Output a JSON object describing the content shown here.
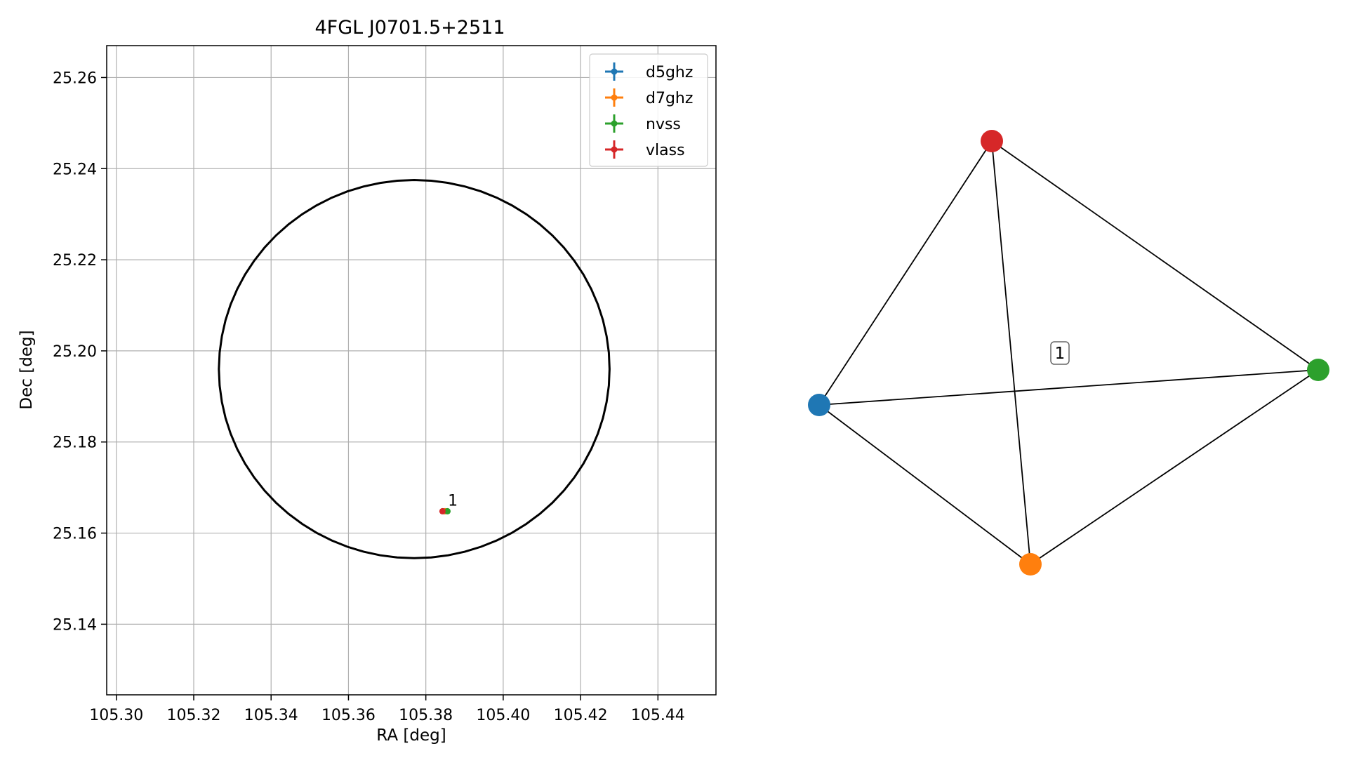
{
  "chart_data": [
    {
      "type": "scatter",
      "title": "4FGL J0701.5+2511",
      "xlabel": "RA [deg]",
      "ylabel": "Dec [deg]",
      "xlim": [
        105.2975,
        105.455
      ],
      "ylim": [
        25.1245,
        25.267
      ],
      "grid": true,
      "legend": "top-right",
      "x_ticks": [
        "105.30",
        "105.32",
        "105.34",
        "105.36",
        "105.38",
        "105.40",
        "105.42",
        "105.44"
      ],
      "y_ticks": [
        "25.14",
        "25.16",
        "25.18",
        "25.20",
        "25.22",
        "25.24",
        "25.26"
      ],
      "error_ellipse": {
        "center": [
          105.377,
          25.196
        ],
        "semi_axis_ra": 0.0505,
        "semi_axis_dec": 0.0415,
        "color": "#000000"
      },
      "series": [
        {
          "name": "d5ghz",
          "color": "#1f77b4",
          "points": [
            [
              105.3848,
              25.1648
            ]
          ]
        },
        {
          "name": "d7ghz",
          "color": "#ff7f0e",
          "points": [
            [
              105.385,
              25.1648
            ]
          ]
        },
        {
          "name": "nvss",
          "color": "#2ca02c",
          "points": [
            [
              105.3856,
              25.1648
            ]
          ]
        },
        {
          "name": "vlass",
          "color": "#d62728",
          "points": [
            [
              105.3843,
              25.1648
            ]
          ]
        }
      ],
      "annotations": [
        {
          "text": "1",
          "x": 105.3857,
          "y": 25.166
        }
      ]
    },
    {
      "type": "graph",
      "cluster_label": "1",
      "nodes": [
        {
          "name": "d5ghz",
          "color": "#1f77b4"
        },
        {
          "name": "d7ghz",
          "color": "#ff7f0e"
        },
        {
          "name": "nvss",
          "color": "#2ca02c"
        },
        {
          "name": "vlass",
          "color": "#d62728"
        }
      ],
      "edges": [
        [
          "vlass",
          "d5ghz"
        ],
        [
          "vlass",
          "nvss"
        ],
        [
          "vlass",
          "d7ghz"
        ],
        [
          "d5ghz",
          "nvss"
        ],
        [
          "d5ghz",
          "d7ghz"
        ],
        [
          "d7ghz",
          "nvss"
        ]
      ]
    }
  ]
}
